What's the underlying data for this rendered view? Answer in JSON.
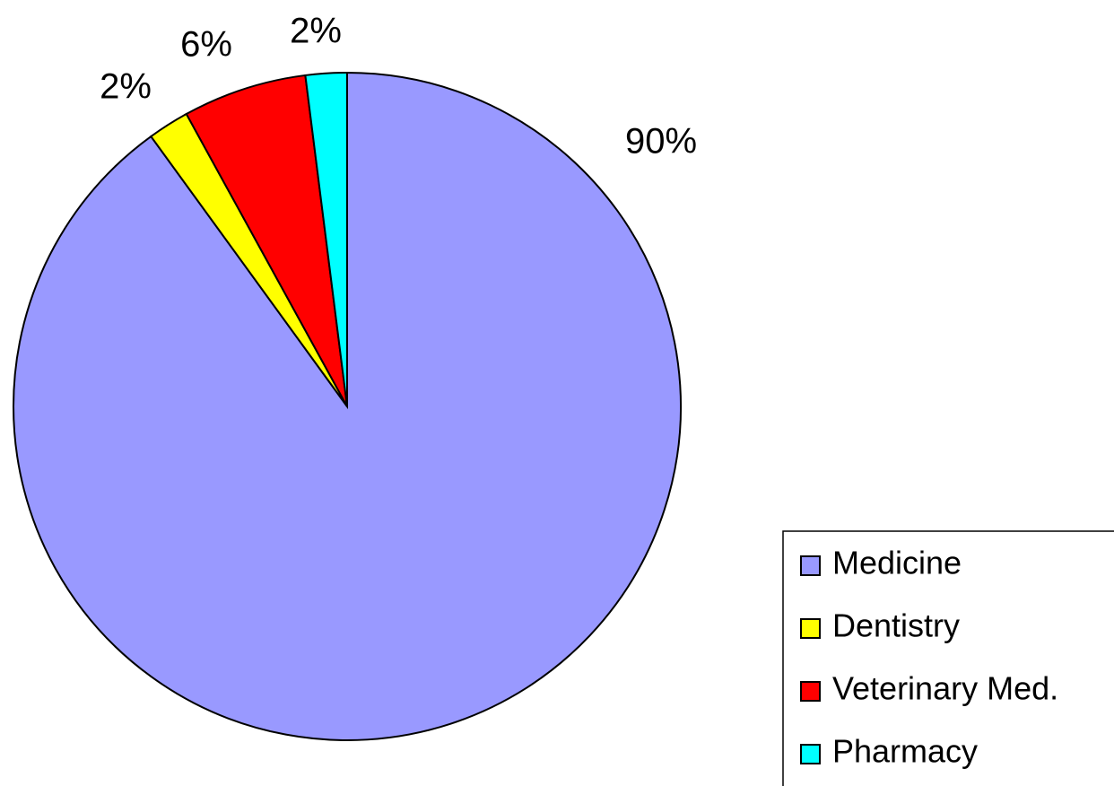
{
  "chart_data": {
    "type": "pie",
    "categories": [
      "Medicine",
      "Dentistry",
      "Veterinary Med.",
      "Pharmacy"
    ],
    "values": [
      90,
      2,
      6,
      2
    ],
    "value_labels": [
      "90%",
      "2%",
      "6%",
      "2%"
    ],
    "colors": [
      "#9999ff",
      "#ffff00",
      "#ff0000",
      "#00ffff"
    ],
    "legend": "bottom-right"
  }
}
